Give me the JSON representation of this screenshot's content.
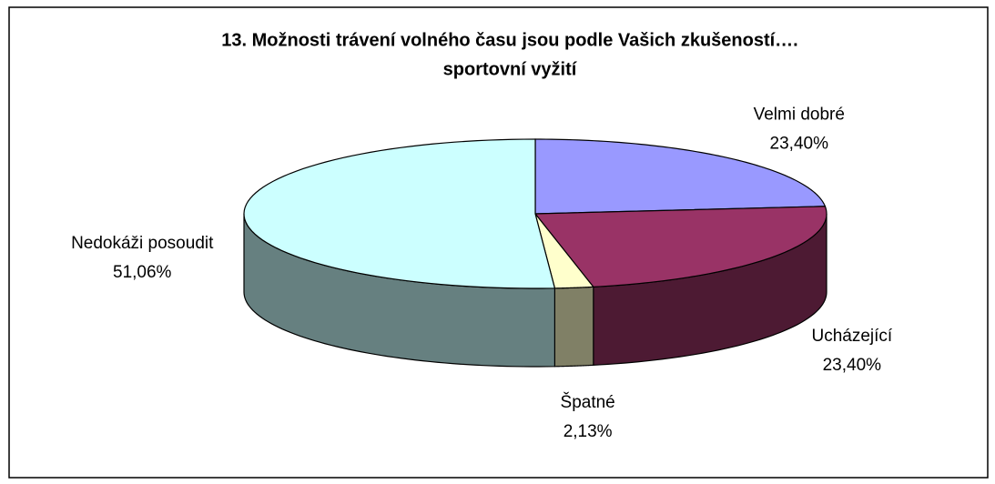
{
  "chart_data": {
    "type": "pie3d",
    "title": [
      "13. Možnosti trávení volného času jsou podle Vašich zkušeností….",
      "sportovní vyžití"
    ],
    "categories": [
      "Velmi dobré",
      "Ucházející",
      "Špatné",
      "Nedokáži posoudit"
    ],
    "values": [
      23.4,
      23.4,
      2.13,
      51.06
    ],
    "value_labels": [
      "23,40%",
      "23,40%",
      "2,13%",
      "51,06%"
    ],
    "colors": [
      "#9999ff",
      "#993366",
      "#ffffcc",
      "#ccffff"
    ]
  }
}
